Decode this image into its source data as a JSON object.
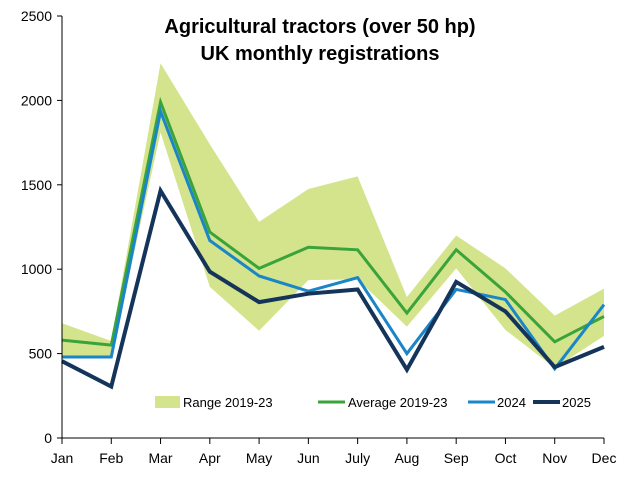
{
  "chart_data": {
    "type": "line",
    "title": [
      "Agricultural tractors (over 50 hp)",
      "UK monthly registrations"
    ],
    "xlabel": "",
    "ylabel": "",
    "categories": [
      "Jan",
      "Feb",
      "Mar",
      "Apr",
      "May",
      "Jun",
      "July",
      "Aug",
      "Sep",
      "Oct",
      "Nov",
      "Dec"
    ],
    "ylim": [
      0,
      2500
    ],
    "yticks": [
      0,
      500,
      1000,
      1500,
      2000,
      2500
    ],
    "grid": false,
    "legend_position": "bottom-inside",
    "range": {
      "name": "Range 2019-23",
      "color": "#d4e48c",
      "upper": [
        680,
        575,
        2220,
        1740,
        1280,
        1475,
        1550,
        835,
        1200,
        1005,
        725,
        885
      ],
      "lower": [
        480,
        480,
        1810,
        895,
        635,
        935,
        940,
        660,
        1005,
        640,
        415,
        605
      ]
    },
    "series": [
      {
        "name": "Average 2019-23",
        "color": "#3aa33a",
        "values": [
          580,
          550,
          1990,
          1220,
          1005,
          1130,
          1115,
          740,
          1115,
          865,
          570,
          720
        ]
      },
      {
        "name": "2024",
        "color": "#1a86c8",
        "values": [
          480,
          480,
          1935,
          1170,
          960,
          870,
          950,
          500,
          880,
          820,
          410,
          790
        ]
      },
      {
        "name": "2025",
        "color": "#14345a",
        "values": [
          455,
          305,
          1465,
          985,
          805,
          855,
          880,
          405,
          925,
          750,
          420,
          540
        ]
      }
    ]
  }
}
